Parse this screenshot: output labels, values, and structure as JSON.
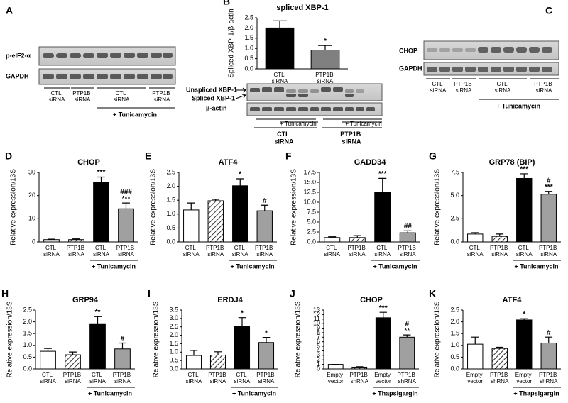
{
  "blots": [
    {
      "label": "A",
      "rows": [
        "p-eIF2-α",
        "GAPDH"
      ],
      "lanes": [
        "CTL siRNA",
        "PTP1B siRNA",
        "CTL siRNA",
        "PTP1B siRNA"
      ],
      "treatment": "+ Tunicamycin"
    },
    {
      "rows": [
        "Unspliced XBP-1",
        "Spliced XBP-1",
        "β-actin"
      ],
      "treatments": [
        "+ Tunicamycin",
        "+ Tunicamycin"
      ],
      "groups": [
        "CTL siRNA",
        "PTP1B siRNA"
      ]
    },
    {
      "label": "C",
      "rows": [
        "CHOP",
        "GAPDH"
      ],
      "lanes": [
        "CTL siRNA",
        "PTP1B siRNA",
        "CTL siRNA",
        "PTP1B siRNA"
      ],
      "treatment": "+ Tunicamycin"
    }
  ],
  "chart_data": [
    {
      "type": "bar",
      "panel": "B",
      "title": "spliced XBP-1",
      "y_label": "Spliced XBP-1/β-actin",
      "categories": [
        "CTL siRNA",
        "PTP1B siRNA"
      ],
      "values": [
        2.0,
        0.92
      ],
      "errors": [
        0.35,
        0.22
      ],
      "bar_styles": [
        "#000000",
        "#808080"
      ],
      "annotations": [
        null,
        [
          "*"
        ]
      ],
      "ylim": [
        0,
        2.5
      ],
      "yticks": [
        {
          "value": 0,
          "label": "0.0"
        },
        0.5,
        {
          "value": 1,
          "label": "1.0"
        },
        1.5,
        {
          "value": 2,
          "label": "2.0"
        },
        2.5
      ]
    },
    {
      "type": "bar",
      "panel": "D",
      "title": "CHOP",
      "y_label": "Relative expression/13S",
      "categories": [
        "CTL siRNA",
        "PTP1B siRNA",
        "CTL siRNA",
        "PTP1B siRNA"
      ],
      "values": [
        1,
        1,
        25.8,
        14.3
      ],
      "errors": [
        0.2,
        0.3,
        2.2,
        2.5
      ],
      "bar_styles": [
        "#ffffff",
        "hatched",
        "#000000",
        "#a0a0a0"
      ],
      "annotations": [
        null,
        null,
        [
          "***"
        ],
        [
          "###",
          "***"
        ]
      ],
      "treatment": "+ Tunicamycin",
      "ylim": [
        0,
        30
      ],
      "yticks": [
        0,
        10,
        20,
        30
      ]
    },
    {
      "type": "bar",
      "panel": "E",
      "title": "ATF4",
      "y_label": "Relative expression/13S",
      "categories": [
        "CTL siRNA",
        "PTP1B siRNA",
        "CTL siRNA",
        "PTP1B siRNA"
      ],
      "values": [
        1.15,
        1.48,
        2.02,
        1.12
      ],
      "errors": [
        0.25,
        0.05,
        0.25,
        0.2
      ],
      "bar_styles": [
        "#ffffff",
        "hatched",
        "#000000",
        "#a0a0a0"
      ],
      "annotations": [
        null,
        null,
        [
          "*"
        ],
        [
          "#"
        ]
      ],
      "treatment": "+ Tunicamycin",
      "ylim": [
        0,
        2.5
      ],
      "yticks": [
        {
          "value": 0,
          "label": "0.0"
        },
        0.5,
        {
          "value": 1,
          "label": "1.0"
        },
        1.5,
        {
          "value": 2,
          "label": "2.0"
        },
        2.5
      ]
    },
    {
      "type": "bar",
      "panel": "F",
      "title": "GADD34",
      "y_label": "Relative expression/13S",
      "categories": [
        "CTL siRNA",
        "PTP1B siRNA",
        "CTL siRNA",
        "PTP1B siRNA"
      ],
      "values": [
        1.1,
        1.1,
        12.5,
        2.3
      ],
      "errors": [
        0.2,
        0.5,
        3.5,
        0.5
      ],
      "bar_styles": [
        "#ffffff",
        "hatched",
        "#000000",
        "#a0a0a0"
      ],
      "annotations": [
        null,
        null,
        [
          "***"
        ],
        [
          "##"
        ]
      ],
      "treatment": "+ Tunicamycin",
      "ylim": [
        0,
        17.5
      ],
      "yticks": [
        {
          "value": 0,
          "label": "0.0"
        },
        2.5,
        {
          "value": 5,
          "label": "5.0"
        },
        7.5,
        {
          "value": 10,
          "label": "10.0"
        },
        12.5,
        {
          "value": 15,
          "label": "15.0"
        },
        17.5
      ]
    },
    {
      "type": "bar",
      "panel": "G",
      "title": "GRP78 (BIP)",
      "y_label": "Relative expression/13S",
      "categories": [
        "CTL siRNA",
        "PTP1B siRNA",
        "CTL siRNA",
        "PTP1B siRNA"
      ],
      "values": [
        0.85,
        0.6,
        6.85,
        5.15
      ],
      "errors": [
        0.15,
        0.25,
        0.5,
        0.3
      ],
      "bar_styles": [
        "#ffffff",
        "hatched",
        "#000000",
        "#a0a0a0"
      ],
      "annotations": [
        null,
        null,
        [
          "***"
        ],
        [
          "#",
          "***"
        ]
      ],
      "treatment": "+ Tunicamycin",
      "ylim": [
        0,
        7.5
      ],
      "yticks": [
        {
          "value": 0,
          "label": "0.0"
        },
        2.5,
        {
          "value": 5,
          "label": "5.0"
        },
        7.5
      ]
    },
    {
      "type": "bar",
      "panel": "H",
      "title": "GRP94",
      "y_label": "Relative expression/13S",
      "categories": [
        "CTL siRNA",
        "PTP1B siRNA",
        "CTL siRNA",
        "PTP1B siRNA"
      ],
      "values": [
        0.75,
        0.6,
        1.92,
        0.85
      ],
      "errors": [
        0.12,
        0.12,
        0.3,
        0.25
      ],
      "bar_styles": [
        "#ffffff",
        "hatched",
        "#000000",
        "#a0a0a0"
      ],
      "annotations": [
        null,
        null,
        [
          "**"
        ],
        [
          "#"
        ]
      ],
      "treatment": "+ Tunicamycin",
      "ylim": [
        0,
        2.5
      ],
      "yticks": [
        {
          "value": 0,
          "label": "0.0"
        },
        0.5,
        {
          "value": 1,
          "label": "1.0"
        },
        1.5,
        {
          "value": 2,
          "label": "2.0"
        },
        2.5
      ]
    },
    {
      "type": "bar",
      "panel": "I",
      "title": "ERDJ4",
      "y_label": "Relative expression/13S",
      "categories": [
        "CTL siRNA",
        "PTP1B siRNA",
        "CTL siRNA",
        "PTP1B siRNA"
      ],
      "values": [
        0.8,
        0.82,
        2.55,
        1.57
      ],
      "errors": [
        0.3,
        0.2,
        0.5,
        0.3
      ],
      "bar_styles": [
        "#ffffff",
        "hatched",
        "#000000",
        "#a0a0a0"
      ],
      "annotations": [
        null,
        null,
        [
          "*"
        ],
        [
          "*"
        ]
      ],
      "treatment": "+ Tunicamycin",
      "ylim": [
        0,
        3.5
      ],
      "yticks": [
        {
          "value": 0,
          "label": "0.0"
        },
        0.5,
        {
          "value": 1,
          "label": "1.0"
        },
        1.5,
        {
          "value": 2,
          "label": "2.0"
        },
        2.5,
        {
          "value": 3,
          "label": "3.0"
        },
        3.5
      ]
    },
    {
      "type": "bar",
      "panel": "J",
      "title": "CHOP",
      "y_label": "Relative expression/13S",
      "categories": [
        "Empty vector",
        "PTP1B shRNA",
        "Empty vector",
        "PTP1B shRNA"
      ],
      "values": [
        1,
        0.4,
        11.3,
        7
      ],
      "errors": [
        0,
        0.1,
        1.2,
        0.5
      ],
      "bar_styles": [
        "#ffffff",
        "hatched",
        "#000000",
        "#a0a0a0"
      ],
      "annotations": [
        null,
        null,
        [
          "***"
        ],
        [
          "#",
          "**"
        ]
      ],
      "treatment": "+ Thapsigargin",
      "ylim": [
        0,
        13
      ],
      "yticks": [
        0,
        1,
        2,
        3,
        4,
        5,
        6,
        7,
        8,
        9,
        10,
        11,
        12,
        13
      ]
    },
    {
      "type": "bar",
      "panel": "K",
      "title": "ATF4",
      "y_label": "Relative expression/13S",
      "categories": [
        "Empty vector",
        "PTP1B shRNA",
        "Empty vector",
        "PTP1B shRNA"
      ],
      "values": [
        1.05,
        0.87,
        2.08,
        1.1
      ],
      "errors": [
        0.3,
        0.05,
        0.05,
        0.25
      ],
      "bar_styles": [
        "#ffffff",
        "hatched",
        "#000000",
        "#a0a0a0"
      ],
      "annotations": [
        null,
        null,
        [
          "*"
        ],
        [
          "#"
        ]
      ],
      "treatment": "+ Thapsigargin",
      "ylim": [
        0,
        2.5
      ],
      "yticks": [
        {
          "value": 0,
          "label": "0.0"
        },
        0.5,
        {
          "value": 1,
          "label": "1.0"
        },
        1.5,
        {
          "value": 2,
          "label": "2.0"
        },
        2.5
      ]
    }
  ]
}
